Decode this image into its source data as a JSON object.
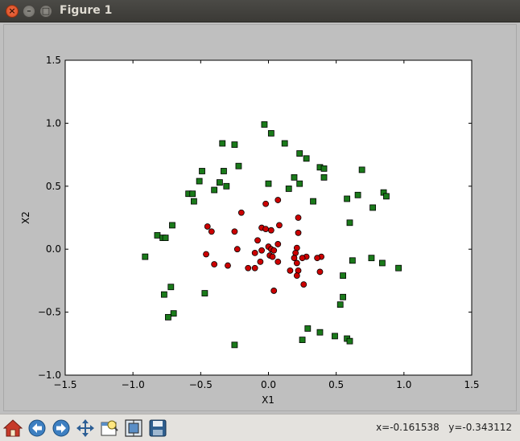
{
  "window": {
    "title": "Figure 1"
  },
  "toolbar": {
    "buttons": [
      "home-icon",
      "back-arrow-icon",
      "forward-arrow-icon",
      "pan-icon",
      "zoom-icon",
      "subplots-icon",
      "save-icon"
    ],
    "coord_readout": "x=-0.161538   y=-0.343112"
  },
  "colors": {
    "red_marker": "#cc0000",
    "green_marker": "#1a7a1a",
    "titlebar": "#3f3e3a"
  },
  "chart_data": {
    "type": "scatter",
    "xlabel": "X1",
    "ylabel": "X2",
    "xlim": [
      -1.5,
      1.5
    ],
    "ylim": [
      -1.0,
      1.5
    ],
    "xticks": [
      "−1.5",
      "−1.0",
      "−0.5",
      "0.0",
      "0.5",
      "1.0",
      "1.5"
    ],
    "yticks": [
      "1.5",
      "1.0",
      "0.5",
      "0.0",
      "−0.5",
      "−1.0"
    ],
    "xtick_values": [
      -1.5,
      -1.0,
      -0.5,
      0.0,
      0.5,
      1.0,
      1.5
    ],
    "ytick_values": [
      1.5,
      1.0,
      0.5,
      0.0,
      -0.5,
      -1.0
    ],
    "grid": false,
    "series": [
      {
        "marker": "circle",
        "color": "#cc0000",
        "points": [
          [
            -0.2,
            0.29
          ],
          [
            -0.05,
            0.17
          ],
          [
            -0.02,
            0.16
          ],
          [
            0.02,
            0.15
          ],
          [
            -0.02,
            0.36
          ],
          [
            0.07,
            0.39
          ],
          [
            0.22,
            0.25
          ],
          [
            0.08,
            0.19
          ],
          [
            0.22,
            0.13
          ],
          [
            -0.45,
            0.18
          ],
          [
            -0.42,
            0.14
          ],
          [
            -0.25,
            0.14
          ],
          [
            -0.08,
            0.07
          ],
          [
            -0.23,
            0.0
          ],
          [
            0.0,
            0.02
          ],
          [
            0.02,
            0.0
          ],
          [
            0.07,
            0.04
          ],
          [
            0.04,
            -0.01
          ],
          [
            -0.05,
            -0.01
          ],
          [
            -0.1,
            -0.03
          ],
          [
            -0.46,
            -0.04
          ],
          [
            0.01,
            -0.05
          ],
          [
            0.03,
            -0.06
          ],
          [
            0.21,
            0.01
          ],
          [
            0.2,
            -0.03
          ],
          [
            0.28,
            -0.06
          ],
          [
            0.39,
            -0.06
          ],
          [
            0.25,
            -0.07
          ],
          [
            0.19,
            -0.07
          ],
          [
            0.36,
            -0.07
          ],
          [
            -0.06,
            -0.1
          ],
          [
            0.07,
            -0.1
          ],
          [
            0.21,
            -0.11
          ],
          [
            -0.4,
            -0.12
          ],
          [
            -0.3,
            -0.13
          ],
          [
            -0.1,
            -0.15
          ],
          [
            -0.15,
            -0.15
          ],
          [
            0.16,
            -0.17
          ],
          [
            0.22,
            -0.17
          ],
          [
            0.38,
            -0.18
          ],
          [
            0.21,
            -0.21
          ],
          [
            0.26,
            -0.28
          ],
          [
            0.04,
            -0.33
          ]
        ]
      },
      {
        "marker": "square",
        "color": "#1a7a1a",
        "points": [
          [
            -0.03,
            0.99
          ],
          [
            0.02,
            0.92
          ],
          [
            0.12,
            0.84
          ],
          [
            -0.34,
            0.84
          ],
          [
            -0.25,
            0.83
          ],
          [
            0.23,
            0.76
          ],
          [
            0.28,
            0.72
          ],
          [
            -0.22,
            0.66
          ],
          [
            -0.33,
            0.62
          ],
          [
            -0.49,
            0.62
          ],
          [
            0.38,
            0.65
          ],
          [
            0.41,
            0.64
          ],
          [
            0.69,
            0.63
          ],
          [
            0.19,
            0.57
          ],
          [
            0.41,
            0.57
          ],
          [
            -0.51,
            0.54
          ],
          [
            -0.36,
            0.53
          ],
          [
            0.0,
            0.52
          ],
          [
            0.23,
            0.52
          ],
          [
            -0.31,
            0.5
          ],
          [
            0.15,
            0.48
          ],
          [
            -0.4,
            0.47
          ],
          [
            -0.59,
            0.44
          ],
          [
            -0.56,
            0.44
          ],
          [
            0.66,
            0.43
          ],
          [
            0.85,
            0.45
          ],
          [
            0.87,
            0.42
          ],
          [
            0.58,
            0.4
          ],
          [
            0.33,
            0.38
          ],
          [
            -0.55,
            0.38
          ],
          [
            0.77,
            0.33
          ],
          [
            0.6,
            0.21
          ],
          [
            -0.71,
            0.19
          ],
          [
            -0.82,
            0.11
          ],
          [
            -0.78,
            0.09
          ],
          [
            -0.76,
            0.09
          ],
          [
            -0.91,
            -0.06
          ],
          [
            0.62,
            -0.09
          ],
          [
            0.76,
            -0.07
          ],
          [
            0.84,
            -0.11
          ],
          [
            0.96,
            -0.15
          ],
          [
            0.55,
            -0.21
          ],
          [
            -0.72,
            -0.3
          ],
          [
            0.55,
            -0.38
          ],
          [
            -0.47,
            -0.35
          ],
          [
            -0.77,
            -0.36
          ],
          [
            0.53,
            -0.44
          ],
          [
            -0.7,
            -0.51
          ],
          [
            -0.74,
            -0.54
          ],
          [
            0.29,
            -0.63
          ],
          [
            0.38,
            -0.66
          ],
          [
            0.49,
            -0.69
          ],
          [
            0.58,
            -0.71
          ],
          [
            0.25,
            -0.72
          ],
          [
            0.6,
            -0.73
          ],
          [
            -0.25,
            -0.76
          ]
        ]
      }
    ]
  }
}
